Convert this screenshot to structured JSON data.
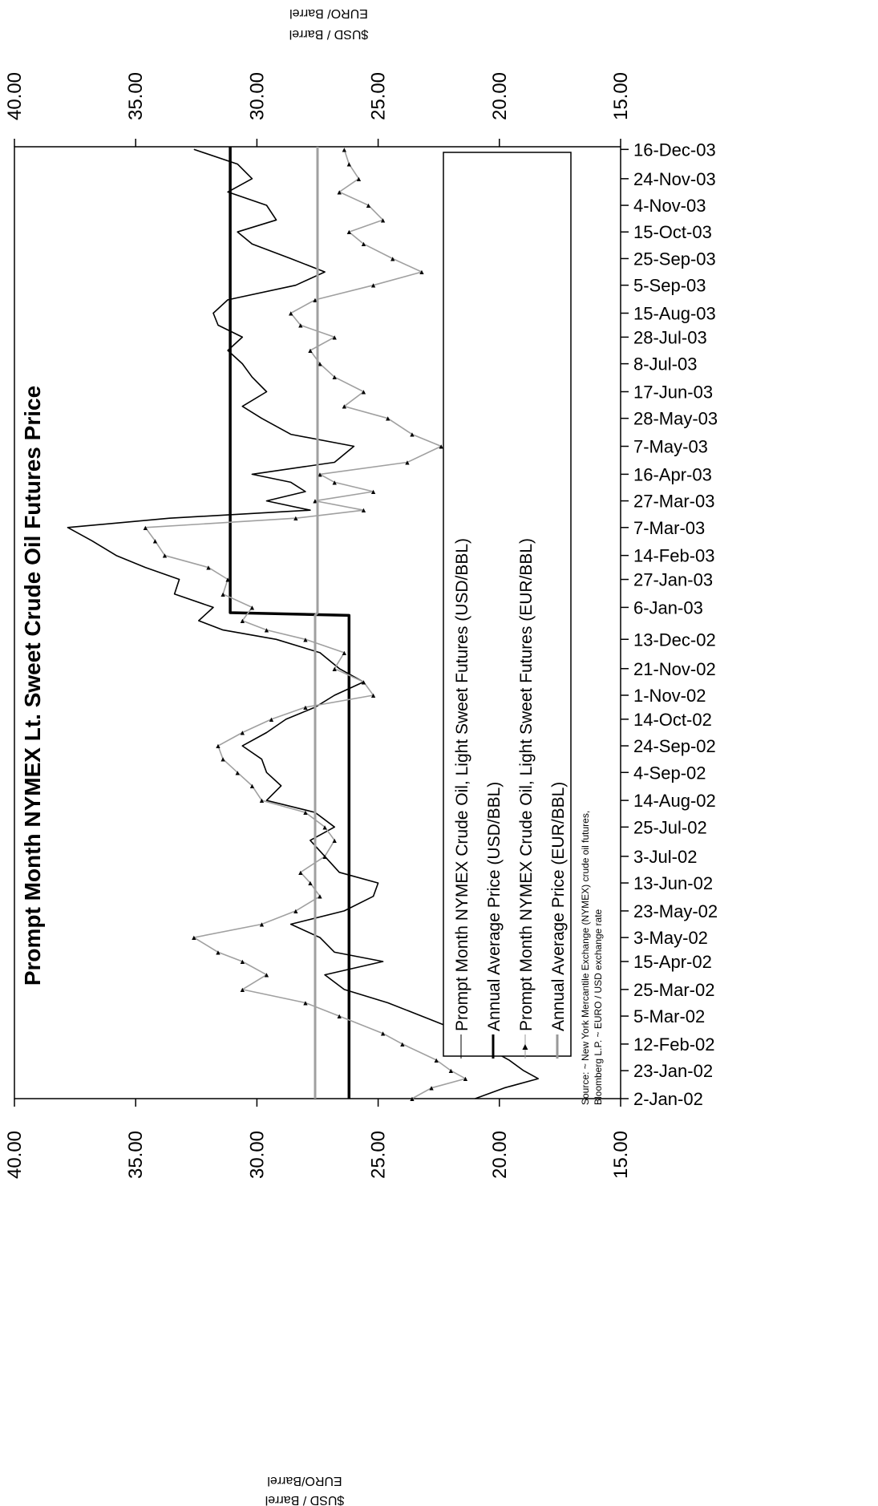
{
  "chart_data": {
    "type": "line",
    "orientation": "rotated-90-clockwise",
    "title": "Prompt Month NYMEX Lt. Sweet Crude Oil Futures Price",
    "left_axis_label_line1": "$USD / Barrel",
    "left_axis_label_line2": "EURO/Barrel",
    "right_axis_label_line1": "$USD / Barrel",
    "right_axis_label_line2": "EURO/ Barrel",
    "ylim": [
      15,
      40
    ],
    "y_ticks": [
      "15.00",
      "20.00",
      "25.00",
      "30.00",
      "35.00",
      "40.00"
    ],
    "x_ticks": [
      "2-Jan-02",
      "23-Jan-02",
      "12-Feb-02",
      "5-Mar-02",
      "25-Mar-02",
      "15-Apr-02",
      "3-May-02",
      "23-May-02",
      "13-Jun-02",
      "3-Jul-02",
      "25-Jul-02",
      "14-Aug-02",
      "4-Sep-02",
      "24-Sep-02",
      "14-Oct-02",
      "1-Nov-02",
      "21-Nov-02",
      "13-Dec-02",
      "6-Jan-03",
      "27-Jan-03",
      "14-Feb-03",
      "7-Mar-03",
      "27-Mar-03",
      "16-Apr-03",
      "7-May-03",
      "28-May-03",
      "17-Jun-03",
      "8-Jul-03",
      "28-Jul-03",
      "15-Aug-03",
      "5-Sep-03",
      "25-Sep-03",
      "15-Oct-03",
      "4-Nov-03",
      "24-Nov-03",
      "16-Dec-03"
    ],
    "legend": [
      "Prompt Month NYMEX Crude Oil, Light Sweet Futures (USD/BBL)",
      "Annual Average Price (USD/BBL)",
      "Prompt Month NYMEX Crude Oil, Light Sweet Futures (EUR/BBL)",
      "Annual Average Price (EUR/BBL)"
    ],
    "source_line1": "Source: ~ New York Mercantile Exchange (NYMEX) crude oil futures,",
    "source_line2": "Bloomberg L.P. ~ EURO / USD exchange rate",
    "series": [
      {
        "name": "Prompt Month NYMEX Crude Oil, Light Sweet Futures (USD/BBL)",
        "color": "#000000",
        "points": [
          [
            "2-Jan-02",
            21.0
          ],
          [
            "10-Jan-02",
            19.8
          ],
          [
            "17-Jan-02",
            18.4
          ],
          [
            "23-Jan-02",
            19.0
          ],
          [
            "31-Jan-02",
            19.6
          ],
          [
            "12-Feb-02",
            20.8
          ],
          [
            "20-Feb-02",
            21.4
          ],
          [
            "5-Mar-02",
            23.2
          ],
          [
            "15-Mar-02",
            24.6
          ],
          [
            "25-Mar-02",
            26.4
          ],
          [
            "5-Apr-02",
            27.2
          ],
          [
            "15-Apr-02",
            24.8
          ],
          [
            "22-Apr-02",
            26.8
          ],
          [
            "3-May-02",
            27.4
          ],
          [
            "13-May-02",
            28.6
          ],
          [
            "23-May-02",
            26.4
          ],
          [
            "3-Jun-02",
            25.2
          ],
          [
            "13-Jun-02",
            25.0
          ],
          [
            "21-Jun-02",
            26.6
          ],
          [
            "3-Jul-02",
            27.2
          ],
          [
            "15-Jul-02",
            27.8
          ],
          [
            "25-Jul-02",
            26.8
          ],
          [
            "5-Aug-02",
            27.6
          ],
          [
            "14-Aug-02",
            29.6
          ],
          [
            "25-Aug-02",
            29.0
          ],
          [
            "4-Sep-02",
            29.6
          ],
          [
            "14-Sep-02",
            29.8
          ],
          [
            "24-Sep-02",
            30.6
          ],
          [
            "4-Oct-02",
            29.6
          ],
          [
            "14-Oct-02",
            28.8
          ],
          [
            "23-Oct-02",
            27.6
          ],
          [
            "1-Nov-02",
            26.8
          ],
          [
            "11-Nov-02",
            25.6
          ],
          [
            "21-Nov-02",
            26.6
          ],
          [
            "3-Dec-02",
            27.4
          ],
          [
            "13-Dec-02",
            29.2
          ],
          [
            "20-Dec-02",
            31.4
          ],
          [
            "27-Dec-02",
            32.4
          ],
          [
            "6-Jan-03",
            31.8
          ],
          [
            "16-Jan-03",
            33.4
          ],
          [
            "27-Jan-03",
            33.2
          ],
          [
            "5-Feb-03",
            34.6
          ],
          [
            "14-Feb-03",
            35.8
          ],
          [
            "25-Feb-03",
            36.8
          ],
          [
            "7-Mar-03",
            37.8
          ],
          [
            "14-Mar-03",
            33.6
          ],
          [
            "20-Mar-03",
            27.8
          ],
          [
            "27-Mar-03",
            29.6
          ],
          [
            "3-Apr-03",
            28.0
          ],
          [
            "10-Apr-03",
            28.6
          ],
          [
            "16-Apr-03",
            30.2
          ],
          [
            "25-Apr-03",
            26.8
          ],
          [
            "7-May-03",
            26.0
          ],
          [
            "16-May-03",
            28.6
          ],
          [
            "28-May-03",
            29.8
          ],
          [
            "6-Jun-03",
            30.6
          ],
          [
            "17-Jun-03",
            29.6
          ],
          [
            "28-Jun-03",
            30.2
          ],
          [
            "8-Jul-03",
            30.6
          ],
          [
            "18-Jul-03",
            31.2
          ],
          [
            "28-Jul-03",
            30.6
          ],
          [
            "6-Aug-03",
            31.6
          ],
          [
            "15-Aug-03",
            31.8
          ],
          [
            "25-Aug-03",
            31.2
          ],
          [
            "5-Sep-03",
            28.4
          ],
          [
            "15-Sep-03",
            27.2
          ],
          [
            "25-Sep-03",
            28.6
          ],
          [
            "6-Oct-03",
            30.2
          ],
          [
            "15-Oct-03",
            30.8
          ],
          [
            "24-Oct-03",
            29.2
          ],
          [
            "4-Nov-03",
            29.6
          ],
          [
            "14-Nov-03",
            31.2
          ],
          [
            "24-Nov-03",
            30.2
          ],
          [
            "5-Dec-03",
            30.8
          ],
          [
            "16-Dec-03",
            32.6
          ]
        ]
      },
      {
        "name": "Annual Average Price (USD/BBL)",
        "color": "#000000",
        "points": [
          [
            "2-Jan-02",
            26.2
          ],
          [
            "31-Dec-02",
            26.2
          ],
          [
            "2-Jan-03",
            31.1
          ],
          [
            "18-Dec-03",
            31.1
          ]
        ]
      },
      {
        "name": "Prompt Month NYMEX Crude Oil, Light Sweet Futures (EUR/BBL)",
        "color": "#a0a0a0",
        "points": [
          [
            "2-Jan-02",
            23.6
          ],
          [
            "10-Jan-02",
            22.8
          ],
          [
            "17-Jan-02",
            21.4
          ],
          [
            "23-Jan-02",
            22.0
          ],
          [
            "31-Jan-02",
            22.6
          ],
          [
            "12-Feb-02",
            24.0
          ],
          [
            "20-Feb-02",
            24.8
          ],
          [
            "5-Mar-02",
            26.6
          ],
          [
            "15-Mar-02",
            28.0
          ],
          [
            "25-Mar-02",
            30.6
          ],
          [
            "5-Apr-02",
            29.6
          ],
          [
            "15-Apr-02",
            30.6
          ],
          [
            "22-Apr-02",
            31.6
          ],
          [
            "3-May-02",
            32.6
          ],
          [
            "13-May-02",
            29.8
          ],
          [
            "23-May-02",
            28.4
          ],
          [
            "3-Jun-02",
            27.4
          ],
          [
            "13-Jun-02",
            27.8
          ],
          [
            "21-Jun-02",
            28.2
          ],
          [
            "3-Jul-02",
            27.2
          ],
          [
            "15-Jul-02",
            26.8
          ],
          [
            "25-Jul-02",
            27.2
          ],
          [
            "5-Aug-02",
            28.0
          ],
          [
            "14-Aug-02",
            29.8
          ],
          [
            "25-Aug-02",
            30.2
          ],
          [
            "4-Sep-02",
            30.8
          ],
          [
            "14-Sep-02",
            31.4
          ],
          [
            "24-Sep-02",
            31.6
          ],
          [
            "4-Oct-02",
            30.6
          ],
          [
            "14-Oct-02",
            29.4
          ],
          [
            "23-Oct-02",
            28.0
          ],
          [
            "1-Nov-02",
            25.2
          ],
          [
            "11-Nov-02",
            25.6
          ],
          [
            "21-Nov-02",
            26.8
          ],
          [
            "3-Dec-02",
            26.4
          ],
          [
            "13-Dec-02",
            28.0
          ],
          [
            "20-Dec-02",
            29.6
          ],
          [
            "27-Dec-02",
            30.6
          ],
          [
            "6-Jan-03",
            30.2
          ],
          [
            "16-Jan-03",
            31.4
          ],
          [
            "27-Jan-03",
            31.2
          ],
          [
            "5-Feb-03",
            32.0
          ],
          [
            "14-Feb-03",
            33.8
          ],
          [
            "25-Feb-03",
            34.2
          ],
          [
            "7-Mar-03",
            34.6
          ],
          [
            "14-Mar-03",
            28.4
          ],
          [
            "20-Mar-03",
            25.6
          ],
          [
            "27-Mar-03",
            27.6
          ],
          [
            "3-Apr-03",
            25.2
          ],
          [
            "10-Apr-03",
            26.8
          ],
          [
            "16-Apr-03",
            27.4
          ],
          [
            "25-Apr-03",
            23.8
          ],
          [
            "7-May-03",
            22.4
          ],
          [
            "16-May-03",
            23.6
          ],
          [
            "28-May-03",
            24.6
          ],
          [
            "6-Jun-03",
            26.4
          ],
          [
            "17-Jun-03",
            25.6
          ],
          [
            "28-Jun-03",
            26.8
          ],
          [
            "8-Jul-03",
            27.4
          ],
          [
            "18-Jul-03",
            27.8
          ],
          [
            "28-Jul-03",
            26.8
          ],
          [
            "6-Aug-03",
            28.2
          ],
          [
            "15-Aug-03",
            28.6
          ],
          [
            "25-Aug-03",
            27.6
          ],
          [
            "5-Sep-03",
            25.2
          ],
          [
            "15-Sep-03",
            23.2
          ],
          [
            "25-Sep-03",
            24.4
          ],
          [
            "6-Oct-03",
            25.6
          ],
          [
            "15-Oct-03",
            26.2
          ],
          [
            "24-Oct-03",
            24.8
          ],
          [
            "4-Nov-03",
            25.4
          ],
          [
            "14-Nov-03",
            26.6
          ],
          [
            "24-Nov-03",
            25.8
          ],
          [
            "5-Dec-03",
            26.2
          ],
          [
            "16-Dec-03",
            26.4
          ]
        ]
      },
      {
        "name": "Annual Average Price (EUR/BBL)",
        "color": "#a0a0a0",
        "points": [
          [
            "2-Jan-02",
            27.6
          ],
          [
            "31-Dec-02",
            27.6
          ],
          [
            "2-Jan-03",
            27.5
          ],
          [
            "18-Dec-03",
            27.5
          ]
        ]
      }
    ]
  }
}
